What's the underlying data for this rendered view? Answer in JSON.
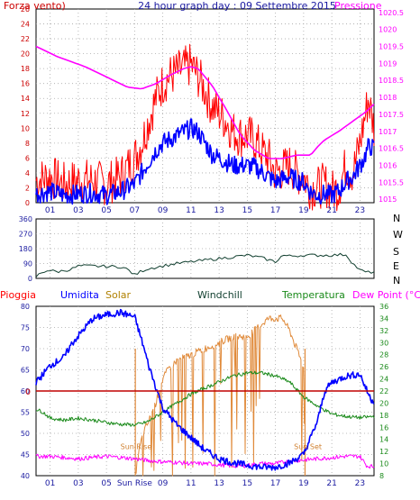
{
  "header": {
    "title": "24 hour graph day : 09 Settembre 2015",
    "left_label": "Forza vento)",
    "right_label": "Pressione"
  },
  "colors": {
    "red": "#ff0000",
    "blue": "#0000ff",
    "magenta": "#ff00ff",
    "navy": "#1a1aa0",
    "darkgreen": "#124030",
    "green": "#1a8a1a",
    "orange": "#e08a3a",
    "brown": "#b03030",
    "darkred": "#c00000",
    "grid": "#a8a8a8"
  },
  "chart_data": [
    {
      "id": "wind-pressure",
      "type": "line",
      "x_ticks": [
        "01",
        "03",
        "05",
        "07",
        "09",
        "11",
        "13",
        "15",
        "17",
        "19",
        "21",
        "23"
      ],
      "xlim": [
        0,
        24
      ],
      "y_left_ticks": [
        0,
        2,
        4,
        6,
        8,
        10,
        12,
        14,
        16,
        18,
        20,
        22,
        24,
        26
      ],
      "ylim_left": [
        0,
        26
      ],
      "y_right_ticks": [
        "1015",
        "1015.5",
        "1016",
        "1016.5",
        "1017",
        "1017.5",
        "1018",
        "1018.5",
        "1019",
        "1019.5",
        "1020",
        "1020.5"
      ],
      "ylim_right": [
        1014.9,
        1020.6
      ],
      "series": [
        {
          "key": "gust",
          "axis": "left",
          "color": "#ff0000",
          "style": "noisy",
          "x": [
            0,
            1,
            2,
            3,
            4,
            5,
            6,
            7,
            7.5,
            8,
            8.5,
            9,
            9.5,
            10,
            10.5,
            11,
            11.5,
            12,
            12.5,
            13,
            13.5,
            14,
            14.5,
            15,
            15.5,
            16,
            16.5,
            17,
            17.5,
            18,
            18.5,
            19,
            19.5,
            20,
            20.5,
            21,
            21.5,
            22,
            22.5,
            23,
            23.3,
            23.6,
            23.8,
            24
          ],
          "values": [
            3,
            3.5,
            2.5,
            3,
            3,
            2.5,
            3.5,
            6,
            8,
            11,
            14,
            16,
            17,
            17.5,
            18,
            18.5,
            17,
            15,
            13,
            12,
            11,
            9.5,
            9,
            9,
            8.5,
            7,
            6,
            4,
            4.5,
            5,
            4,
            3.5,
            2,
            2,
            2.5,
            1.5,
            2,
            5,
            4,
            8,
            11,
            14,
            12,
            10
          ],
          "amp": 3.0
        },
        {
          "key": "wind",
          "axis": "left",
          "color": "#0000ff",
          "style": "noisy",
          "x": [
            0,
            1,
            2,
            3,
            4,
            5,
            6,
            7,
            7.5,
            8,
            8.5,
            9,
            9.5,
            10,
            10.5,
            11,
            11.5,
            12,
            12.5,
            13,
            13.5,
            14,
            14.5,
            15,
            15.5,
            16,
            16.5,
            17,
            17.5,
            18,
            18.5,
            19,
            19.5,
            20,
            20.5,
            21,
            21.5,
            22,
            22.5,
            23,
            23.3,
            23.6,
            23.8,
            24
          ],
          "values": [
            1.2,
            1.5,
            1,
            1.2,
            1.3,
            1,
            1.5,
            2.5,
            4,
            5.5,
            7,
            8,
            8.5,
            9,
            9.5,
            10,
            9.5,
            8,
            6.5,
            6,
            5.5,
            5,
            5,
            5,
            4.8,
            4.2,
            3.5,
            2.8,
            3.2,
            3.5,
            3,
            2.8,
            1.5,
            1,
            1.2,
            1,
            1.5,
            2.8,
            3.5,
            5,
            6,
            7.5,
            7.5,
            7.2
          ],
          "amp": 1.3
        },
        {
          "key": "pressure",
          "axis": "right",
          "color": "#ff00ff",
          "style": "smooth",
          "x": [
            0,
            0.5,
            1.5,
            2.5,
            3.5,
            4.5,
            5.5,
            6.5,
            7.5,
            8.5,
            9.5,
            10.5,
            11,
            11.5,
            12.5,
            13.5,
            14.5,
            15.5,
            16.5,
            17.5,
            18.5,
            19.5,
            20,
            20.5,
            21.5,
            22.5,
            23.5,
            24
          ],
          "values": [
            1019.5,
            1019.4,
            1019.2,
            1019.05,
            1018.9,
            1018.7,
            1018.5,
            1018.3,
            1018.25,
            1018.4,
            1018.65,
            1018.85,
            1018.9,
            1018.85,
            1018.35,
            1017.65,
            1016.9,
            1016.45,
            1016.2,
            1016.2,
            1016.3,
            1016.3,
            1016.55,
            1016.75,
            1017.0,
            1017.3,
            1017.6,
            1017.8
          ]
        }
      ]
    },
    {
      "id": "wind-direction",
      "type": "line",
      "xlim": [
        0,
        24
      ],
      "y_ticks": [
        0,
        90,
        180,
        270,
        360
      ],
      "ylim": [
        0,
        360
      ],
      "dir_labels": [
        "N",
        "W",
        "S",
        "E",
        "N"
      ],
      "series": [
        {
          "key": "direction",
          "color": "#124030",
          "x": [
            0,
            0.3,
            0.8,
            1.5,
            2.5,
            3,
            4,
            5,
            6,
            6.5,
            7,
            7.5,
            8,
            9,
            10,
            11,
            12,
            13,
            14,
            15,
            16,
            17,
            17.5,
            18,
            19,
            20,
            21,
            22,
            22.5,
            23,
            23.5,
            24
          ],
          "values": [
            10,
            30,
            50,
            40,
            55,
            75,
            75,
            72,
            70,
            55,
            20,
            45,
            60,
            75,
            90,
            100,
            110,
            120,
            130,
            140,
            125,
            100,
            140,
            135,
            140,
            140,
            140,
            145,
            90,
            50,
            35,
            40
          ],
          "jitter": 18
        }
      ]
    },
    {
      "id": "humidity-temp",
      "type": "line",
      "xlim": [
        0,
        24
      ],
      "x_ticks": [
        "01",
        "03",
        "05",
        "Sun Rise",
        "09",
        "11",
        "13",
        "15",
        "17",
        "19",
        "21",
        "23"
      ],
      "y_left_ticks": [
        40,
        45,
        50,
        55,
        60,
        65,
        70,
        75,
        80
      ],
      "ylim_left": [
        40,
        80
      ],
      "y_right_ticks": [
        8,
        10,
        12,
        14,
        16,
        18,
        20,
        22,
        24,
        26,
        28,
        30,
        32,
        34,
        36
      ],
      "ylim_right": [
        8,
        36
      ],
      "rain_marker_value": "0",
      "rain_marker_y": 60,
      "annotations": [
        {
          "text": "Sun Rise",
          "x": 7.1,
          "y": 46.3
        },
        {
          "text": "Sun Set",
          "x": 19.3,
          "y": 46.3
        }
      ],
      "vlines": [
        7.05,
        19.1
      ],
      "series": [
        {
          "key": "umidita",
          "axis": "left",
          "color": "#0000ff",
          "style": "noisy",
          "x": [
            0,
            1,
            2,
            2.5,
            3,
            4,
            5,
            6,
            7,
            7.5,
            8,
            8.5,
            9,
            10,
            11,
            12,
            13,
            14,
            15,
            16,
            17,
            18,
            19,
            20,
            20.5,
            21,
            22,
            23,
            23.5,
            23.8,
            24
          ],
          "values": [
            62,
            66,
            68,
            71,
            73,
            77,
            78,
            78.5,
            77.5,
            72,
            66,
            61,
            56,
            52,
            49,
            46,
            44,
            43,
            42.5,
            42,
            42,
            43,
            45,
            53,
            60,
            62,
            63.5,
            64,
            60,
            58,
            57.5
          ],
          "amp": 0.8
        },
        {
          "key": "rain",
          "axis": "left",
          "color": "#c00000",
          "style": "flat",
          "x": [
            0,
            24
          ],
          "values": [
            60,
            60
          ]
        },
        {
          "key": "temperatura",
          "axis": "right",
          "color": "#1a8a1a",
          "style": "noisy",
          "x": [
            0,
            0.5,
            1,
            2,
            3,
            4,
            5,
            6,
            7,
            7.5,
            8,
            9,
            10,
            11,
            12,
            13,
            14,
            15,
            16,
            17,
            18,
            19,
            20,
            21,
            22,
            23,
            24
          ],
          "values": [
            19,
            18.5,
            17.5,
            17.2,
            17.5,
            17.2,
            16.8,
            16.5,
            16.4,
            16.6,
            17,
            18.5,
            20,
            21.5,
            22.5,
            23.5,
            24.5,
            25,
            25,
            24.5,
            23.5,
            21,
            19.5,
            18.2,
            17.8,
            17.6,
            17.8
          ],
          "amp": 0.3
        },
        {
          "key": "dewpoint",
          "axis": "right",
          "color": "#ff00ff",
          "style": "noisy",
          "x": [
            0,
            1,
            2,
            3,
            4,
            5,
            6,
            7,
            8,
            9,
            10,
            11,
            12,
            13,
            14,
            15,
            16,
            17,
            18,
            19,
            20,
            21,
            22,
            23,
            23.5,
            24
          ],
          "values": [
            11.2,
            11.2,
            11.0,
            10.8,
            11.0,
            11.2,
            11.0,
            10.8,
            10.5,
            10.3,
            10.2,
            10.0,
            10.0,
            9.8,
            9.6,
            9.7,
            10.0,
            10.0,
            10.4,
            10.6,
            10.8,
            11.0,
            11.2,
            11.2,
            9.6,
            9.5
          ],
          "amp": 0.35
        },
        {
          "key": "solar",
          "axis": "right",
          "color": "#e08a3a",
          "style": "solar",
          "x": [
            7.05,
            7.3,
            7.6,
            8,
            8.5,
            9,
            9.5,
            10,
            11,
            12,
            13,
            14,
            15,
            15.5,
            16,
            16.5,
            17,
            17.5,
            18,
            18.5,
            19,
            19.1
          ],
          "values": [
            8,
            12,
            15,
            17,
            20,
            24,
            26,
            27,
            28,
            29,
            30,
            31,
            31,
            32,
            33,
            34,
            34,
            34,
            32,
            29,
            26,
            8
          ]
        }
      ]
    }
  ],
  "legends": {
    "bottom": [
      {
        "label": "Pioggia",
        "color": "#ff0000"
      },
      {
        "label": "Umidita",
        "color": "#0000ff"
      },
      {
        "label": "Solar",
        "color": "#b08000"
      },
      {
        "label": "Windchill",
        "color": "#124030"
      },
      {
        "label": "Temperatura",
        "color": "#1a8a1a"
      },
      {
        "label": "Dew Point (°C)",
        "color": "#ff00ff"
      }
    ]
  }
}
